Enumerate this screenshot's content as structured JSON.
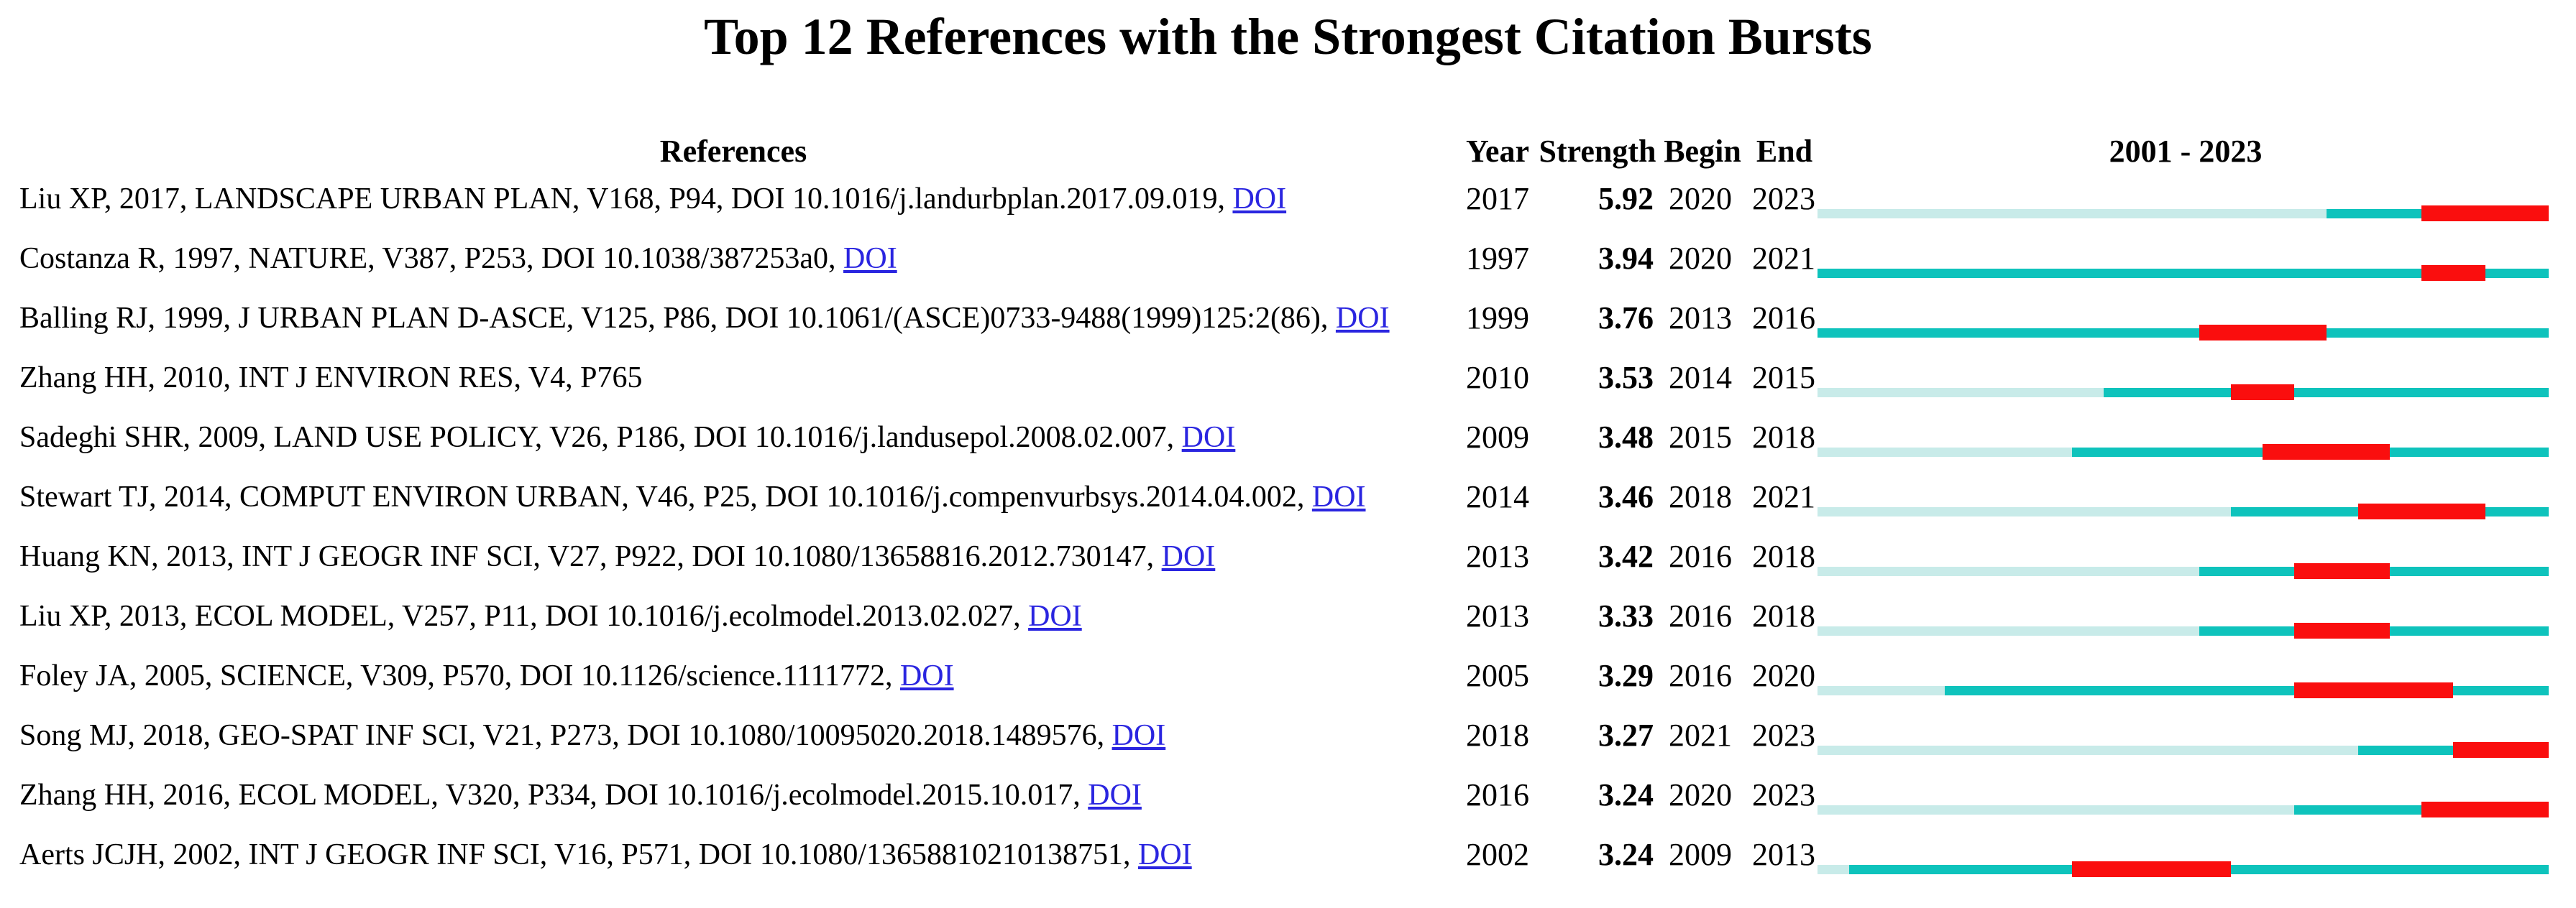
{
  "title": "Top 12 References with the Strongest Citation Bursts",
  "table": {
    "headers": {
      "references": "References",
      "year": "Year",
      "strength": "Strength",
      "begin": "Begin",
      "end": "End",
      "timeline": "2001 - 2023"
    }
  },
  "chart_data": {
    "type": "bar",
    "subtype": "citation-burst-timeline",
    "timeline": {
      "start": 2001,
      "end": 2023
    },
    "legend_note": "pale = before publication year, teal = active, red = burst interval (begin-end inclusive)",
    "colors": {
      "pre": "#c8ebe9",
      "base": "#0ec3bc",
      "burst": "#fa0e0e",
      "link": "#2a25e0",
      "text": "#000000"
    },
    "rows": [
      {
        "reference": "Liu XP, 2017, LANDSCAPE URBAN PLAN, V168, P94, DOI 10.1016/j.landurbplan.2017.09.019,",
        "link": "DOI",
        "year": 2017,
        "strength": "5.92",
        "begin": 2020,
        "end": 2023
      },
      {
        "reference": "Costanza R, 1997, NATURE, V387, P253, DOI 10.1038/387253a0,",
        "link": "DOI",
        "year": 1997,
        "strength": "3.94",
        "begin": 2020,
        "end": 2021
      },
      {
        "reference": "Balling RJ, 1999, J URBAN PLAN D-ASCE, V125, P86, DOI 10.1061/(ASCE)0733-9488(1999)125:2(86),",
        "link": "DOI",
        "year": 1999,
        "strength": "3.76",
        "begin": 2013,
        "end": 2016
      },
      {
        "reference": "Zhang HH, 2010, INT J ENVIRON RES, V4, P765",
        "link": "",
        "year": 2010,
        "strength": "3.53",
        "begin": 2014,
        "end": 2015
      },
      {
        "reference": "Sadeghi SHR, 2009, LAND USE POLICY, V26, P186, DOI 10.1016/j.landusepol.2008.02.007,",
        "link": "DOI",
        "year": 2009,
        "strength": "3.48",
        "begin": 2015,
        "end": 2018
      },
      {
        "reference": "Stewart TJ, 2014, COMPUT ENVIRON URBAN, V46, P25, DOI 10.1016/j.compenvurbsys.2014.04.002,",
        "link": "DOI",
        "year": 2014,
        "strength": "3.46",
        "begin": 2018,
        "end": 2021
      },
      {
        "reference": "Huang KN, 2013, INT J GEOGR INF SCI, V27, P922, DOI 10.1080/13658816.2012.730147,",
        "link": "DOI",
        "year": 2013,
        "strength": "3.42",
        "begin": 2016,
        "end": 2018
      },
      {
        "reference": "Liu XP, 2013, ECOL MODEL, V257, P11, DOI 10.1016/j.ecolmodel.2013.02.027,",
        "link": "DOI",
        "year": 2013,
        "strength": "3.33",
        "begin": 2016,
        "end": 2018
      },
      {
        "reference": "Foley JA, 2005, SCIENCE, V309, P570, DOI 10.1126/science.1111772,",
        "link": "DOI",
        "year": 2005,
        "strength": "3.29",
        "begin": 2016,
        "end": 2020
      },
      {
        "reference": "Song MJ, 2018, GEO-SPAT INF SCI, V21, P273, DOI 10.1080/10095020.2018.1489576,",
        "link": "DOI",
        "year": 2018,
        "strength": "3.27",
        "begin": 2021,
        "end": 2023
      },
      {
        "reference": "Zhang HH, 2016, ECOL MODEL, V320, P334, DOI 10.1016/j.ecolmodel.2015.10.017,",
        "link": "DOI",
        "year": 2016,
        "strength": "3.24",
        "begin": 2020,
        "end": 2023
      },
      {
        "reference": "Aerts JCJH, 2002, INT J GEOGR INF SCI, V16, P571, DOI 10.1080/13658810210138751,",
        "link": "DOI",
        "year": 2002,
        "strength": "3.24",
        "begin": 2009,
        "end": 2013
      }
    ]
  }
}
